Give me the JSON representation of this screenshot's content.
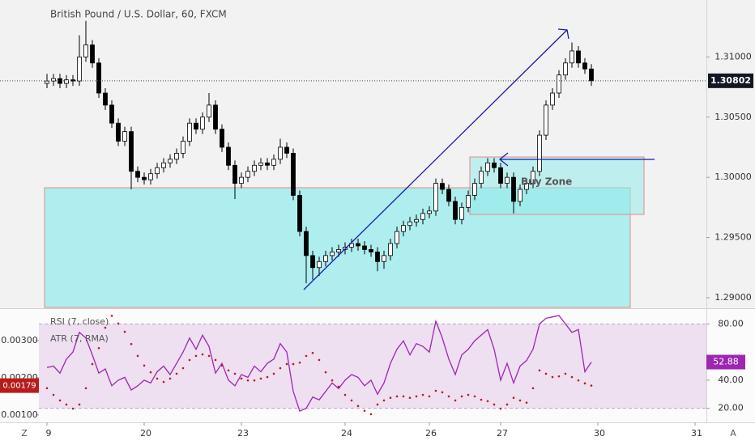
{
  "chart_data": [
    {
      "type": "candlestick",
      "title": "British Pound / U.S. Dollar, 60, FXCM",
      "annotation": "Buy Zone",
      "up_color": "#ffffff",
      "down_color": "#000000",
      "wick_color": "#000000",
      "xlim": [
        -1.25,
        101.75
      ],
      "xticks": [
        {
          "value": 0,
          "label": "9"
        },
        {
          "value": 15,
          "label": "20"
        },
        {
          "value": 30,
          "label": "23"
        },
        {
          "value": 46,
          "label": "24"
        },
        {
          "value": 59,
          "label": "26"
        },
        {
          "value": 70,
          "label": "27"
        },
        {
          "value": 85,
          "label": "30"
        },
        {
          "value": 100,
          "label": "31"
        }
      ],
      "ylim": [
        1.28919,
        1.31473
      ],
      "yticks": [
        {
          "value": 1.31,
          "label": "1.31000"
        },
        {
          "value": 1.305,
          "label": "1.30500"
        },
        {
          "value": 1.3,
          "label": "1.30000"
        },
        {
          "value": 1.295,
          "label": "1.29500"
        },
        {
          "value": 1.29,
          "label": "1.29000"
        }
      ],
      "candles": [
        [
          1.3078,
          1.3086,
          1.3074,
          1.308
        ],
        [
          1.308,
          1.3086,
          1.3076,
          1.3082
        ],
        [
          1.3082,
          1.3086,
          1.3074,
          1.3078
        ],
        [
          1.3078,
          1.3085,
          1.3074,
          1.3081
        ],
        [
          1.3081,
          1.3085,
          1.3076,
          1.308
        ],
        [
          1.308,
          1.3118,
          1.3076,
          1.31
        ],
        [
          1.31,
          1.313,
          1.3096,
          1.311
        ],
        [
          1.311,
          1.3114,
          1.3091,
          1.3095
        ],
        [
          1.3095,
          1.3099,
          1.3066,
          1.307
        ],
        [
          1.307,
          1.3074,
          1.3056,
          1.306
        ],
        [
          1.306,
          1.3064,
          1.3041,
          1.3045
        ],
        [
          1.3045,
          1.3049,
          1.3026,
          1.303
        ],
        [
          1.303,
          1.3042,
          1.3026,
          1.3038
        ],
        [
          1.3038,
          1.3042,
          1.299,
          1.3005
        ],
        [
          1.3005,
          1.3009,
          1.2996,
          1.3
        ],
        [
          1.3,
          1.3004,
          1.2994,
          1.2998
        ],
        [
          1.2998,
          1.3007,
          1.2994,
          1.3003
        ],
        [
          1.3003,
          1.3012,
          1.2999,
          1.3008
        ],
        [
          1.3008,
          1.3016,
          1.3004,
          1.3012
        ],
        [
          1.3012,
          1.3019,
          1.3008,
          1.3015
        ],
        [
          1.3015,
          1.3024,
          1.3011,
          1.302
        ],
        [
          1.302,
          1.3034,
          1.3016,
          1.303
        ],
        [
          1.303,
          1.3049,
          1.3026,
          1.3045
        ],
        [
          1.3045,
          1.3049,
          1.3036,
          1.304
        ],
        [
          1.304,
          1.3054,
          1.3036,
          1.305
        ],
        [
          1.305,
          1.307,
          1.3046,
          1.306
        ],
        [
          1.306,
          1.3064,
          1.3036,
          1.304
        ],
        [
          1.304,
          1.3044,
          1.3021,
          1.3025
        ],
        [
          1.3025,
          1.3029,
          1.3006,
          1.301
        ],
        [
          1.301,
          1.3014,
          1.2982,
          1.2995
        ],
        [
          1.2995,
          1.3004,
          1.2991,
          1.3
        ],
        [
          1.3,
          1.3009,
          1.2996,
          1.3005
        ],
        [
          1.3005,
          1.3014,
          1.3001,
          1.301
        ],
        [
          1.301,
          1.3016,
          1.3006,
          1.3012
        ],
        [
          1.3012,
          1.3016,
          1.3006,
          1.301
        ],
        [
          1.301,
          1.3019,
          1.3006,
          1.3015
        ],
        [
          1.3015,
          1.3032,
          1.3011,
          1.3025
        ],
        [
          1.3025,
          1.3029,
          1.3016,
          1.302
        ],
        [
          1.302,
          1.3024,
          1.2981,
          1.2985
        ],
        [
          1.2985,
          1.2989,
          1.2951,
          1.2955
        ],
        [
          1.2955,
          1.2959,
          1.2912,
          1.2935
        ],
        [
          1.2935,
          1.2939,
          1.2915,
          1.2925
        ],
        [
          1.2925,
          1.2934,
          1.2918,
          1.293
        ],
        [
          1.293,
          1.2939,
          1.2926,
          1.2935
        ],
        [
          1.2935,
          1.2942,
          1.2931,
          1.2938
        ],
        [
          1.2938,
          1.2944,
          1.2934,
          1.294
        ],
        [
          1.294,
          1.2946,
          1.2936,
          1.2942
        ],
        [
          1.2942,
          1.2949,
          1.2938,
          1.2945
        ],
        [
          1.2945,
          1.2949,
          1.2939,
          1.2943
        ],
        [
          1.2943,
          1.2947,
          1.2936,
          1.294
        ],
        [
          1.294,
          1.2944,
          1.2934,
          1.2938
        ],
        [
          1.2938,
          1.2942,
          1.2922,
          1.293
        ],
        [
          1.293,
          1.2939,
          1.2924,
          1.2935
        ],
        [
          1.2935,
          1.2949,
          1.2931,
          1.2945
        ],
        [
          1.2945,
          1.2959,
          1.2941,
          1.2955
        ],
        [
          1.2955,
          1.2964,
          1.2951,
          1.296
        ],
        [
          1.296,
          1.2967,
          1.2956,
          1.2963
        ],
        [
          1.2963,
          1.2969,
          1.2959,
          1.2965
        ],
        [
          1.2965,
          1.2974,
          1.2961,
          1.297
        ],
        [
          1.297,
          1.2976,
          1.2966,
          1.2972
        ],
        [
          1.2972,
          1.2999,
          1.2968,
          1.2995
        ],
        [
          1.2995,
          1.2999,
          1.2986,
          1.299
        ],
        [
          1.299,
          1.2994,
          1.2976,
          1.298
        ],
        [
          1.298,
          1.2984,
          1.2961,
          1.2965
        ],
        [
          1.2965,
          1.2979,
          1.2961,
          1.2975
        ],
        [
          1.2975,
          1.2989,
          1.2971,
          1.2985
        ],
        [
          1.2985,
          1.2999,
          1.2981,
          1.2995
        ],
        [
          1.2995,
          1.3009,
          1.2991,
          1.3005
        ],
        [
          1.3005,
          1.3016,
          1.3001,
          1.3012
        ],
        [
          1.3012,
          1.3016,
          1.3004,
          1.3008
        ],
        [
          1.3008,
          1.3012,
          1.2991,
          1.2995
        ],
        [
          1.2995,
          1.3004,
          1.2991,
          1.3
        ],
        [
          1.3,
          1.3004,
          1.297,
          1.298
        ],
        [
          1.298,
          1.2994,
          1.2976,
          1.299
        ],
        [
          1.299,
          1.2999,
          1.2986,
          1.2995
        ],
        [
          1.2995,
          1.3009,
          1.2991,
          1.3005
        ],
        [
          1.3005,
          1.3039,
          1.3001,
          1.3035
        ],
        [
          1.3035,
          1.3064,
          1.3031,
          1.306
        ],
        [
          1.306,
          1.3074,
          1.3056,
          1.307
        ],
        [
          1.307,
          1.3089,
          1.3066,
          1.3085
        ],
        [
          1.3085,
          1.3099,
          1.3081,
          1.3095
        ],
        [
          1.3095,
          1.3112,
          1.3091,
          1.3105
        ],
        [
          1.3105,
          1.3109,
          1.3091,
          1.3095
        ],
        [
          1.3095,
          1.3099,
          1.3086,
          1.309
        ],
        [
          1.309,
          1.3094,
          1.3076,
          1.30802
        ]
      ]
    },
    {
      "type": "line",
      "ylim": [
        10,
        90
      ],
      "yticks": [
        {
          "value": 80,
          "label": "80.00"
        },
        {
          "value": 40,
          "label": "40.00"
        },
        {
          "value": 20,
          "label": "20.00"
        }
      ],
      "band": [
        20,
        80
      ],
      "y2lim": [
        0.0008,
        0.00383
      ],
      "y2ticks": [
        {
          "value": 0.003,
          "label": "0.00300"
        },
        {
          "value": 0.002,
          "label": "0.00200"
        },
        {
          "value": 0.001,
          "label": "0.00100"
        }
      ],
      "series": [
        {
          "name": "RSI (7, close)",
          "color": "#9c27b0",
          "values": [
            49,
            50,
            45,
            55,
            60,
            74,
            70,
            58,
            45,
            48,
            36,
            40,
            42,
            33,
            36,
            40,
            38,
            46,
            50,
            44,
            52,
            60,
            70,
            62,
            72,
            64,
            45,
            52,
            40,
            36,
            44,
            42,
            50,
            46,
            52,
            55,
            66,
            60,
            32,
            18,
            20,
            28,
            26,
            32,
            38,
            34,
            40,
            44,
            42,
            36,
            40,
            30,
            38,
            52,
            62,
            68,
            58,
            66,
            64,
            60,
            82,
            70,
            55,
            44,
            58,
            62,
            68,
            72,
            76,
            62,
            40,
            52,
            38,
            50,
            54,
            62,
            80,
            84,
            85,
            86,
            80,
            74,
            76,
            46,
            52.88
          ]
        },
        {
          "name": "ATR (7, RMA)",
          "color": "#b71c1c",
          "axis": "y2",
          "values": [
            0.00172,
            0.00154,
            0.00139,
            0.00128,
            0.00117,
            0.00128,
            0.00172,
            0.00237,
            0.0028,
            0.00335,
            0.00367,
            0.00346,
            0.00324,
            0.00291,
            0.00259,
            0.00233,
            0.00215,
            0.00198,
            0.00189,
            0.00198,
            0.00211,
            0.00226,
            0.00248,
            0.00259,
            0.00263,
            0.00259,
            0.00248,
            0.00233,
            0.0022,
            0.00211,
            0.00198,
            0.00193,
            0.00193,
            0.00198,
            0.00202,
            0.00211,
            0.00226,
            0.00237,
            0.00237,
            0.00241,
            0.00259,
            0.00267,
            0.00248,
            0.00215,
            0.00193,
            0.00176,
            0.00154,
            0.00139,
            0.00124,
            0.00111,
            0.00102,
            0.00128,
            0.00139,
            0.00146,
            0.0015,
            0.0015,
            0.00146,
            0.0015,
            0.00154,
            0.0015,
            0.00165,
            0.00161,
            0.0015,
            0.00139,
            0.0015,
            0.00154,
            0.0015,
            0.00141,
            0.00137,
            0.00128,
            0.00117,
            0.00128,
            0.00146,
            0.00139,
            0.00133,
            0.00172,
            0.0022,
            0.00211,
            0.00202,
            0.00204,
            0.00211,
            0.00202,
            0.00193,
            0.00185,
            0.00179
          ]
        }
      ]
    }
  ],
  "ui": {
    "left_button": "Z",
    "right_button": "A"
  }
}
